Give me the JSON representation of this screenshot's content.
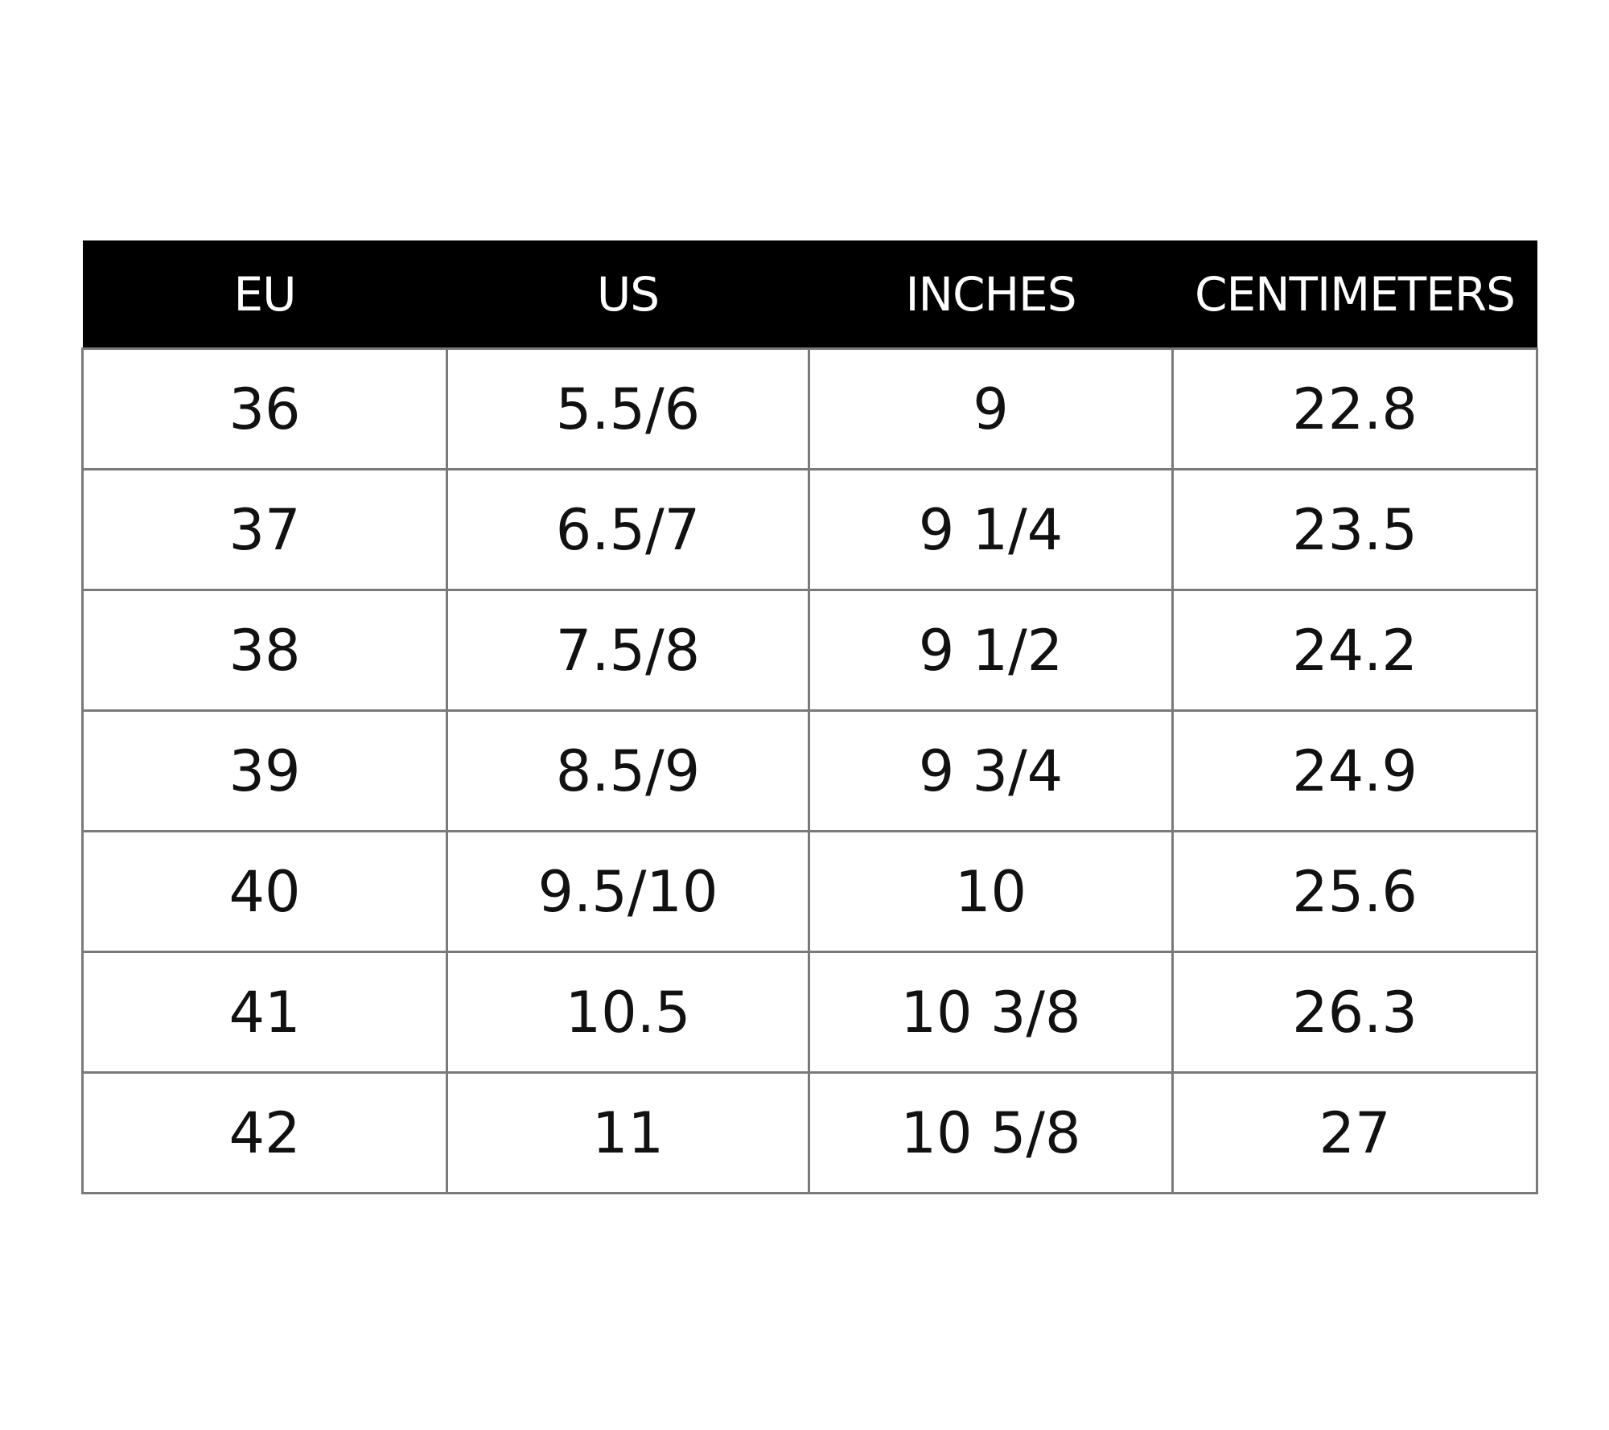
{
  "table": {
    "header": [
      "EU",
      "US",
      "INCHES",
      "CENTIMETERS"
    ],
    "rows": [
      [
        "36",
        "5.5/6",
        "9",
        "22.8"
      ],
      [
        "37",
        "6.5/7",
        "9 1/4",
        "23.5"
      ],
      [
        "38",
        "7.5/8",
        "9 1/2",
        "24.2"
      ],
      [
        "39",
        "8.5/9",
        "9 3/4",
        "24.9"
      ],
      [
        "40",
        "9.5/10",
        "10",
        "25.6"
      ],
      [
        "41",
        "10.5",
        "10 3/8",
        "26.3"
      ],
      [
        "42",
        "11",
        "10 5/8",
        "27"
      ]
    ]
  }
}
